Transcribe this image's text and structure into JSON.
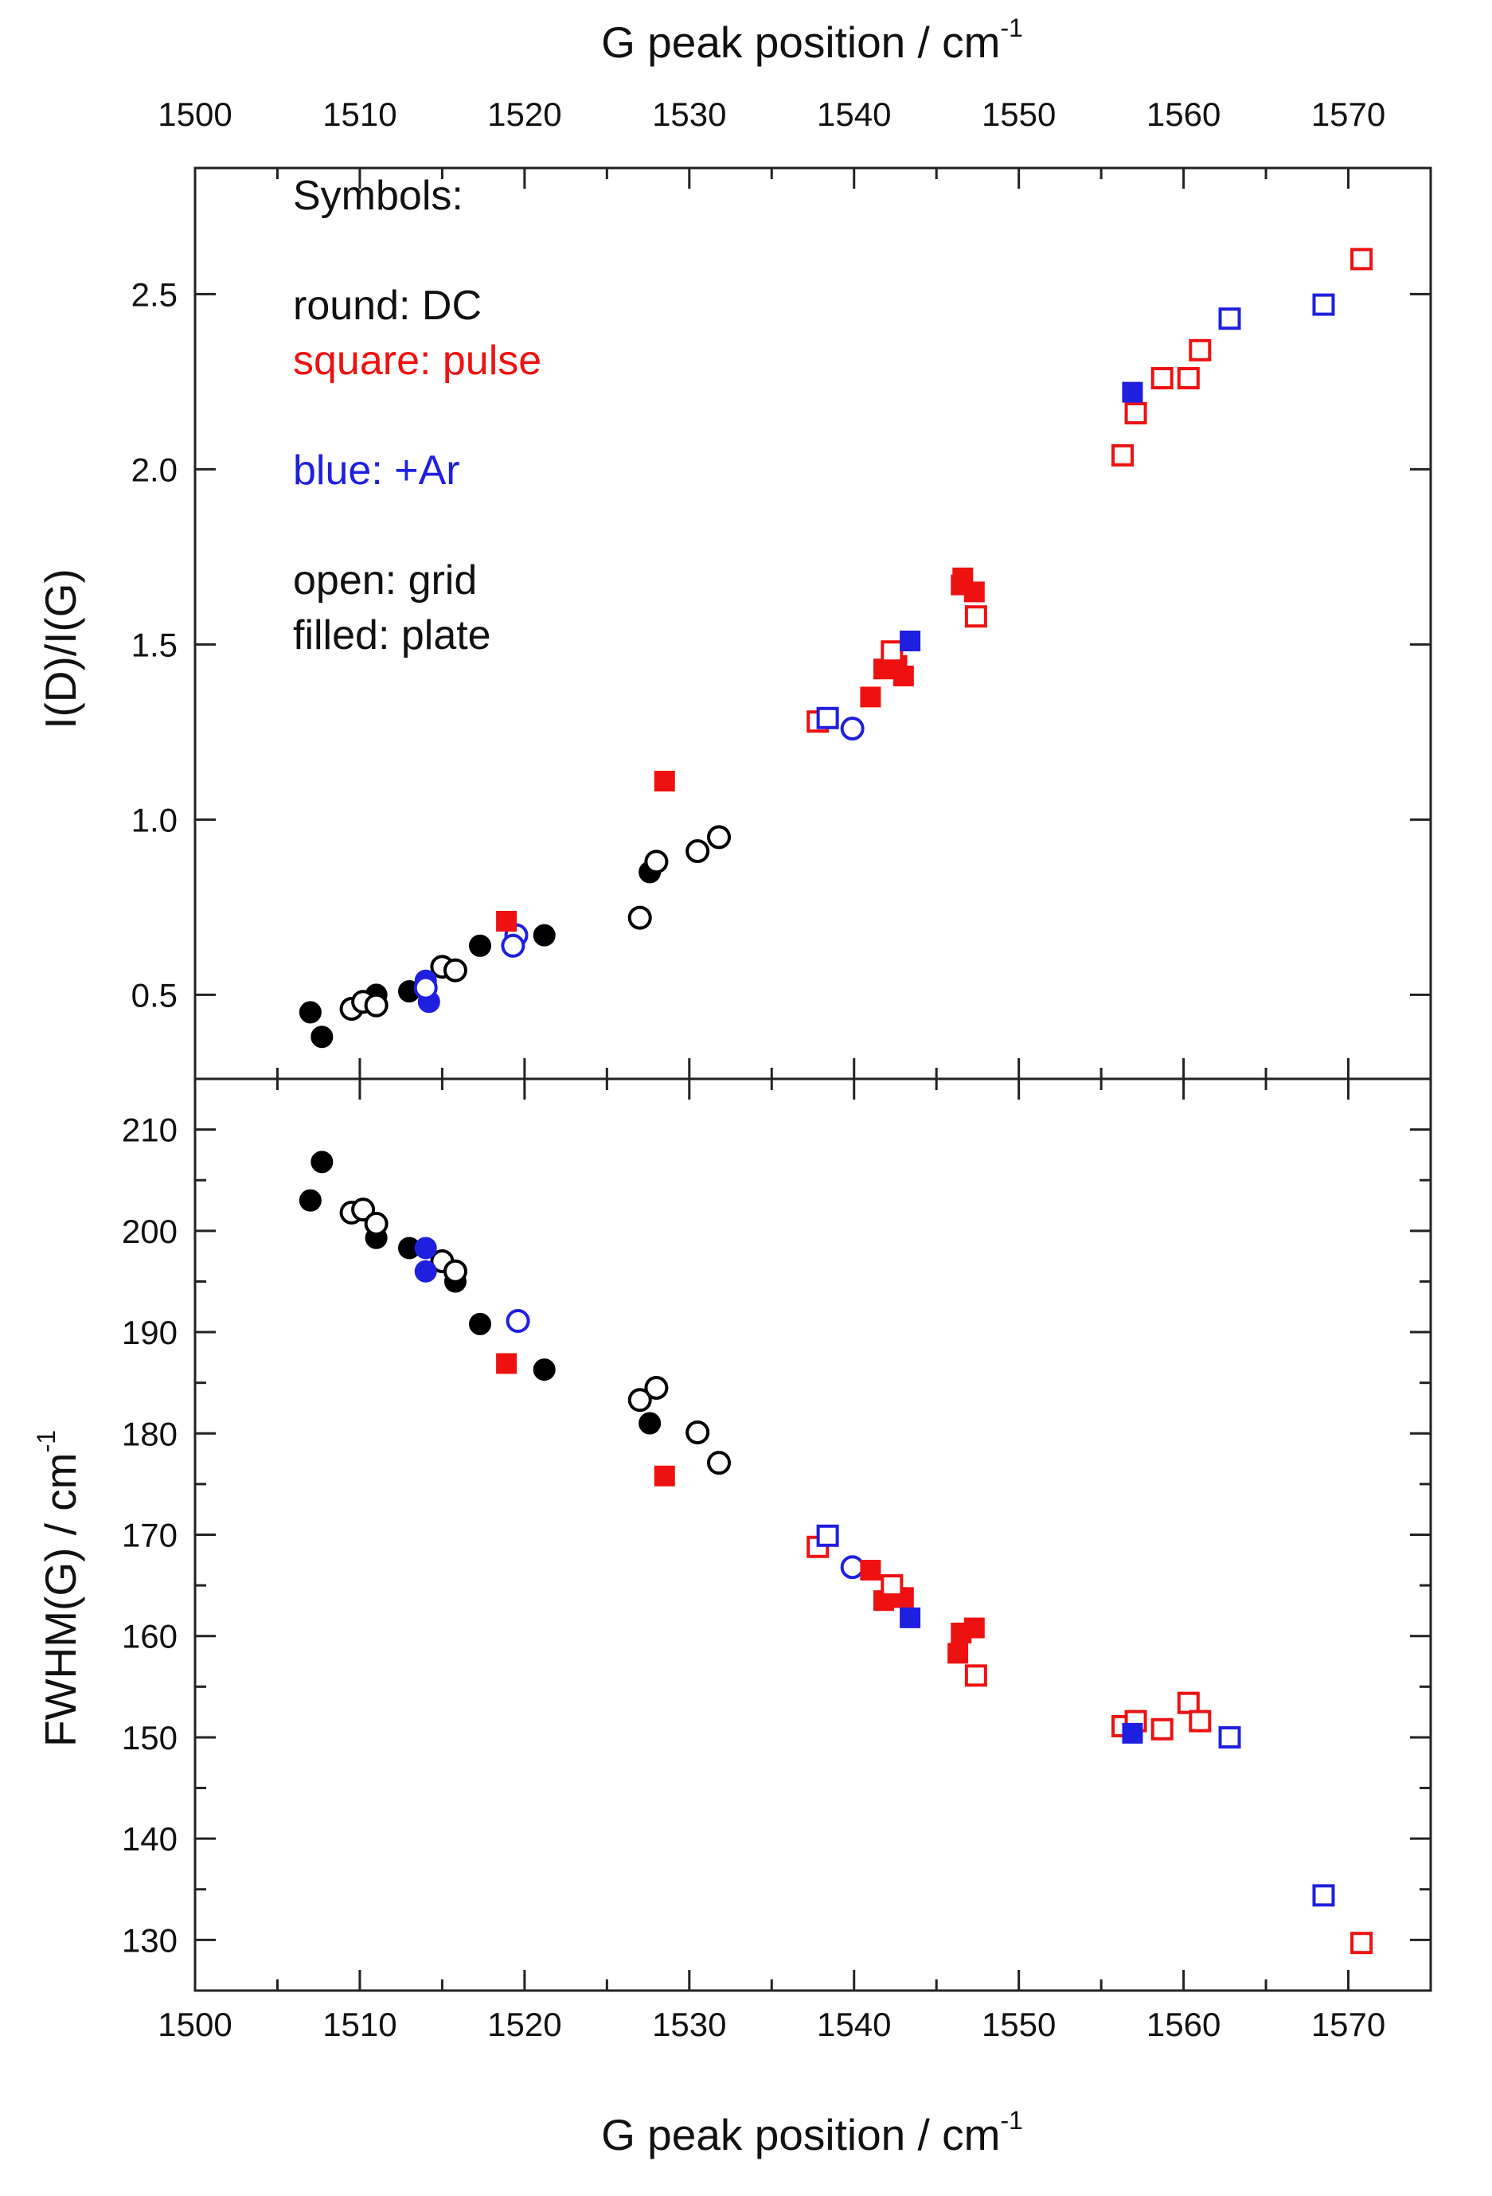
{
  "chart_data": {
    "type": "scatter",
    "x_axis": {
      "label": "G peak position / cm",
      "label_superscript": "-1",
      "range": [
        1500,
        1575
      ],
      "ticks": [
        1500,
        1510,
        1520,
        1530,
        1540,
        1550,
        1560,
        1570
      ],
      "tick_labels": [
        "1500",
        "1510",
        "1520",
        "1530",
        "1540",
        "1550",
        "1560",
        "1570"
      ],
      "minor_step": 5,
      "shared_top_and_bottom": true
    },
    "panels": [
      {
        "id": "top",
        "ylabel": "I(D)/I(G)",
        "ylim": [
          0.26,
          2.86
        ],
        "yticks": [
          0.5,
          1.0,
          1.5,
          2.0,
          2.5
        ],
        "ytick_labels": [
          "0.5",
          "1.0",
          "1.5",
          "2.0",
          "2.5"
        ],
        "y_minor_step": 0.25,
        "series": [
          {
            "name": "DC plate",
            "shape": "circle",
            "fill": "filled",
            "color": "#000000",
            "points": [
              [
                1507.0,
                0.45
              ],
              [
                1507.7,
                0.38
              ],
              [
                1511.0,
                0.5
              ],
              [
                1513.0,
                0.51
              ],
              [
                1517.3,
                0.64
              ],
              [
                1521.2,
                0.67
              ],
              [
                1527.6,
                0.85
              ]
            ]
          },
          {
            "name": "DC grid",
            "shape": "circle",
            "fill": "open",
            "color": "#000000",
            "points": [
              [
                1509.5,
                0.46
              ],
              [
                1510.2,
                0.48
              ],
              [
                1511.0,
                0.47
              ],
              [
                1515.0,
                0.58
              ],
              [
                1515.8,
                0.57
              ],
              [
                1527.0,
                0.72
              ],
              [
                1528.0,
                0.88
              ],
              [
                1530.5,
                0.91
              ],
              [
                1531.8,
                0.95
              ]
            ]
          },
          {
            "name": "DC+Ar plate",
            "shape": "circle",
            "fill": "filled",
            "color": "#1f1fe0",
            "points": [
              [
                1514.0,
                0.54
              ],
              [
                1514.2,
                0.48
              ]
            ]
          },
          {
            "name": "DC+Ar grid",
            "shape": "circle",
            "fill": "open",
            "color": "#1f1fe0",
            "points": [
              [
                1514.0,
                0.52
              ],
              [
                1519.5,
                0.67
              ],
              [
                1519.3,
                0.64
              ],
              [
                1539.9,
                1.26
              ]
            ]
          },
          {
            "name": "pulse plate",
            "shape": "square",
            "fill": "filled",
            "color": "#ee1111",
            "points": [
              [
                1518.9,
                0.71
              ],
              [
                1528.5,
                1.11
              ],
              [
                1541.0,
                1.35
              ],
              [
                1541.8,
                1.43
              ],
              [
                1542.6,
                1.44
              ],
              [
                1543.0,
                1.41
              ],
              [
                1546.5,
                1.67
              ],
              [
                1546.6,
                1.69
              ],
              [
                1547.3,
                1.65
              ]
            ]
          },
          {
            "name": "pulse grid",
            "shape": "square",
            "fill": "open",
            "color": "#ee1111",
            "points": [
              [
                1537.8,
                1.28
              ],
              [
                1542.3,
                1.48
              ],
              [
                1547.4,
                1.58
              ],
              [
                1556.3,
                2.04
              ],
              [
                1557.1,
                2.16
              ],
              [
                1558.7,
                2.26
              ],
              [
                1560.3,
                2.26
              ],
              [
                1561.0,
                2.34
              ],
              [
                1570.8,
                2.6
              ]
            ]
          },
          {
            "name": "pulse+Ar plate",
            "shape": "square",
            "fill": "filled",
            "color": "#1f1fe0",
            "points": [
              [
                1543.4,
                1.51
              ],
              [
                1556.9,
                2.22
              ]
            ]
          },
          {
            "name": "pulse+Ar grid",
            "shape": "square",
            "fill": "open",
            "color": "#1f1fe0",
            "points": [
              [
                1538.4,
                1.29
              ],
              [
                1562.8,
                2.43
              ],
              [
                1568.5,
                2.47
              ]
            ]
          }
        ],
        "legend": {
          "position": "top-left",
          "lines": [
            {
              "text": "Symbols:",
              "color": "#111111"
            },
            {
              "text": "",
              "color": "#111111"
            },
            {
              "text": "round: DC",
              "color": "#111111"
            },
            {
              "text": "square: pulse",
              "color": "#ee1111"
            },
            {
              "text": "",
              "color": "#111111"
            },
            {
              "text": "blue: +Ar",
              "color": "#1f1fe0"
            },
            {
              "text": "",
              "color": "#111111"
            },
            {
              "text": "open: grid",
              "color": "#111111"
            },
            {
              "text": "filled:  plate",
              "color": "#111111"
            }
          ]
        }
      },
      {
        "id": "bottom",
        "ylabel": "FWHM(G) / cm",
        "ylabel_superscript": "-1",
        "ylim": [
          125,
          215
        ],
        "yticks": [
          130,
          140,
          150,
          160,
          170,
          180,
          190,
          200,
          210
        ],
        "ytick_labels": [
          "130",
          "140",
          "150",
          "160",
          "170",
          "180",
          "190",
          "200",
          "210"
        ],
        "y_minor_step": 5,
        "series": [
          {
            "name": "DC plate",
            "shape": "circle",
            "fill": "filled",
            "color": "#000000",
            "points": [
              [
                1507.0,
                203.0
              ],
              [
                1507.7,
                206.8
              ],
              [
                1511.0,
                199.3
              ],
              [
                1513.0,
                198.3
              ],
              [
                1515.8,
                195.0
              ],
              [
                1517.3,
                190.8
              ],
              [
                1521.2,
                186.3
              ],
              [
                1527.6,
                181.0
              ]
            ]
          },
          {
            "name": "DC grid",
            "shape": "circle",
            "fill": "open",
            "color": "#000000",
            "points": [
              [
                1509.5,
                201.8
              ],
              [
                1510.2,
                202.1
              ],
              [
                1511.0,
                200.7
              ],
              [
                1515.0,
                197.0
              ],
              [
                1515.8,
                196.0
              ],
              [
                1527.0,
                183.3
              ],
              [
                1528.0,
                184.5
              ],
              [
                1530.5,
                180.1
              ],
              [
                1531.8,
                177.1
              ]
            ]
          },
          {
            "name": "DC+Ar plate",
            "shape": "circle",
            "fill": "filled",
            "color": "#1f1fe0",
            "points": [
              [
                1514.0,
                198.3
              ],
              [
                1514.0,
                196.0
              ]
            ]
          },
          {
            "name": "DC+Ar grid",
            "shape": "circle",
            "fill": "open",
            "color": "#1f1fe0",
            "points": [
              [
                1519.6,
                191.1
              ],
              [
                1539.9,
                166.8
              ]
            ]
          },
          {
            "name": "pulse plate",
            "shape": "square",
            "fill": "filled",
            "color": "#ee1111",
            "points": [
              [
                1518.9,
                186.9
              ],
              [
                1528.5,
                175.8
              ],
              [
                1541.0,
                166.5
              ],
              [
                1541.8,
                163.5
              ],
              [
                1542.6,
                163.8
              ],
              [
                1543.0,
                163.8
              ],
              [
                1546.3,
                158.3
              ],
              [
                1546.5,
                160.3
              ],
              [
                1547.3,
                160.8
              ]
            ]
          },
          {
            "name": "pulse grid",
            "shape": "square",
            "fill": "open",
            "color": "#ee1111",
            "points": [
              [
                1537.8,
                168.8
              ],
              [
                1542.3,
                165.0
              ],
              [
                1547.4,
                156.1
              ],
              [
                1556.3,
                151.1
              ],
              [
                1557.1,
                151.6
              ],
              [
                1558.7,
                150.8
              ],
              [
                1560.3,
                153.4
              ],
              [
                1561.0,
                151.6
              ],
              [
                1570.8,
                129.7
              ]
            ]
          },
          {
            "name": "pulse+Ar plate",
            "shape": "square",
            "fill": "filled",
            "color": "#1f1fe0",
            "points": [
              [
                1543.4,
                161.8
              ],
              [
                1556.9,
                150.4
              ]
            ]
          },
          {
            "name": "pulse+Ar grid",
            "shape": "square",
            "fill": "open",
            "color": "#1f1fe0",
            "points": [
              [
                1538.4,
                169.9
              ],
              [
                1562.8,
                150.0
              ],
              [
                1568.5,
                134.4
              ]
            ]
          }
        ]
      }
    ]
  }
}
